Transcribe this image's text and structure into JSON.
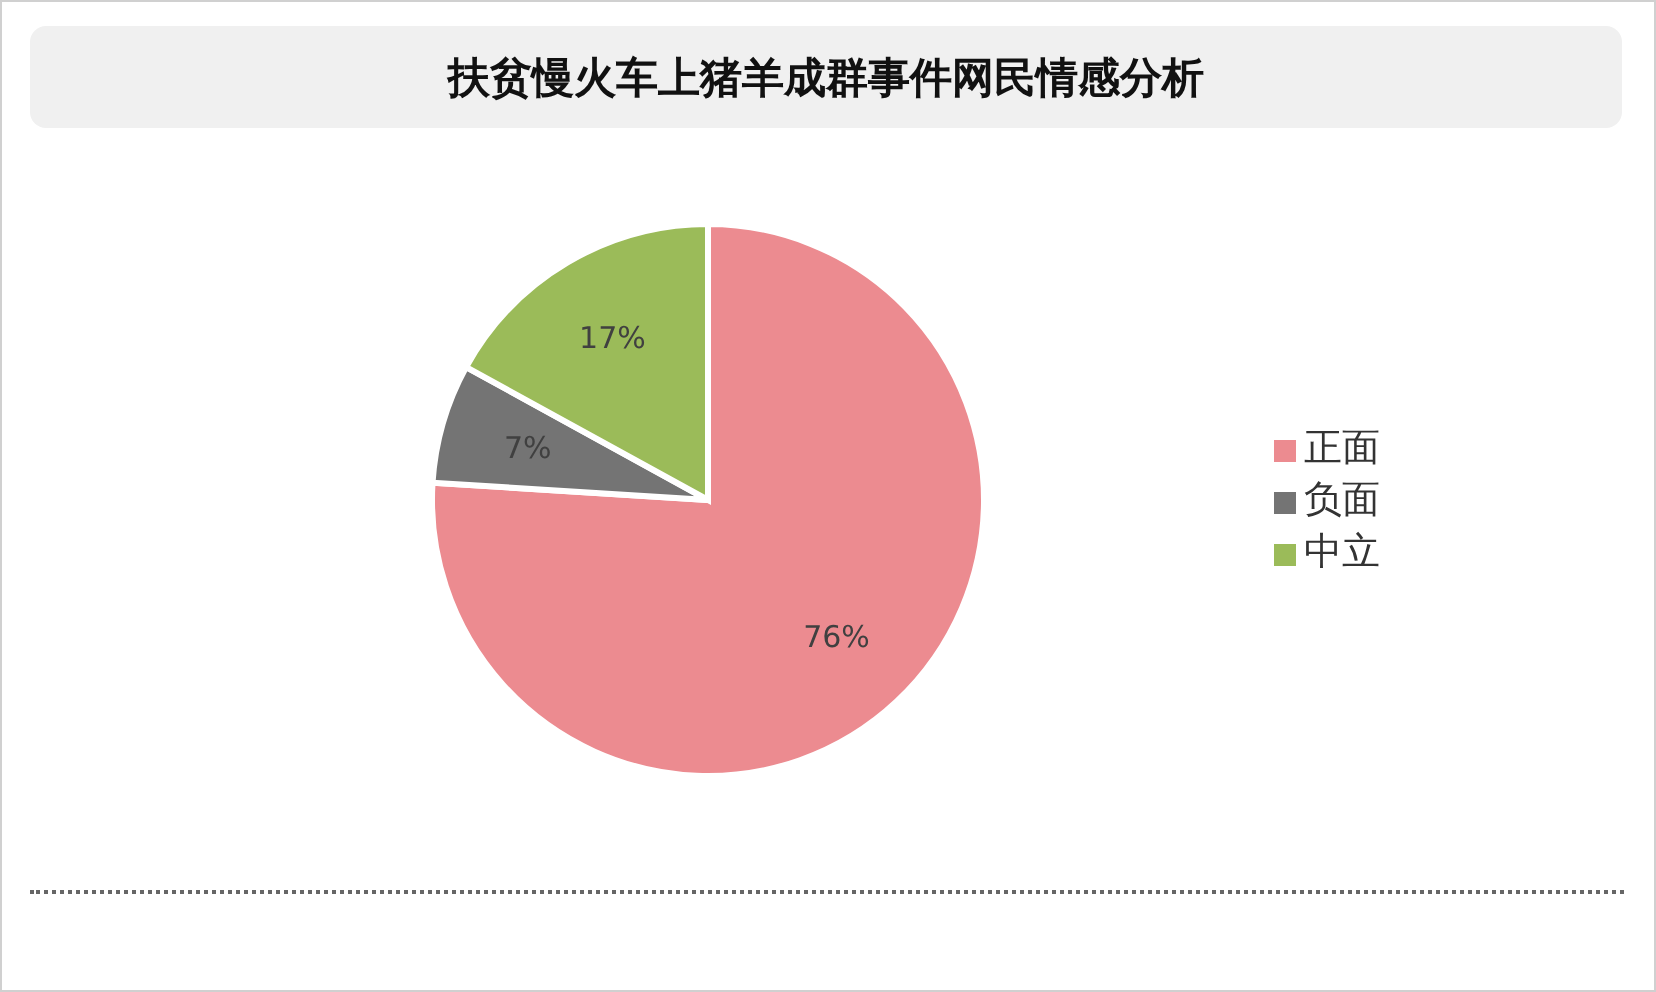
{
  "chart_data": {
    "type": "pie",
    "title": "扶贫慢火车上猪羊成群事件网民情感分析",
    "categories": [
      "正面",
      "负面",
      "中立"
    ],
    "values": [
      76,
      7,
      17
    ],
    "colors": [
      "#ec8b90",
      "#747474",
      "#9bbb59"
    ],
    "value_labels": [
      "76%",
      "7%",
      "17%"
    ],
    "legend": "right"
  }
}
